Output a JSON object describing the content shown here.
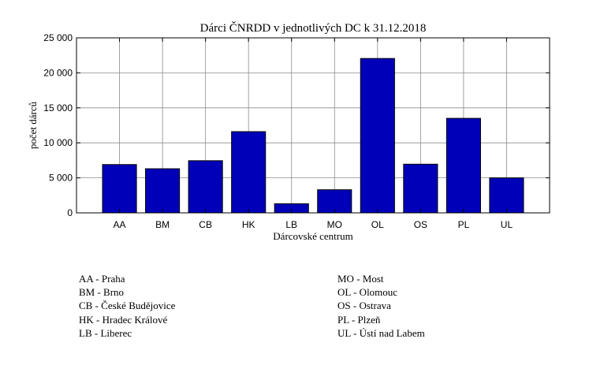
{
  "chart_data": {
    "type": "bar",
    "title": "Dárci ČNRDD v jednotlivých DC k 31.12.2018",
    "xlabel": "Dárcovské centrum",
    "ylabel": "počet dárců",
    "categories": [
      "AA",
      "BM",
      "CB",
      "HK",
      "LB",
      "MO",
      "OL",
      "OS",
      "PL",
      "UL"
    ],
    "values": [
      6900,
      6300,
      7450,
      11600,
      1300,
      3300,
      22050,
      6950,
      13500,
      5000
    ],
    "ylim": [
      0,
      25000
    ],
    "yticks": [
      0,
      5000,
      10000,
      15000,
      20000,
      25000
    ],
    "ytick_labels": [
      "0",
      "5 000",
      "10 000",
      "15 000",
      "20 000",
      "25 000"
    ],
    "grid": true,
    "bar_color": "#0000b8"
  },
  "legend_left": [
    "AA - Praha",
    "BM - Brno",
    "CB - České Budějovice",
    "HK - Hradec Králové",
    "LB - Liberec"
  ],
  "legend_right": [
    "MO - Most",
    "OL - Olomouc",
    "OS - Ostrava",
    "PL - Plzeň",
    "UL - Ústí nad Labem"
  ]
}
